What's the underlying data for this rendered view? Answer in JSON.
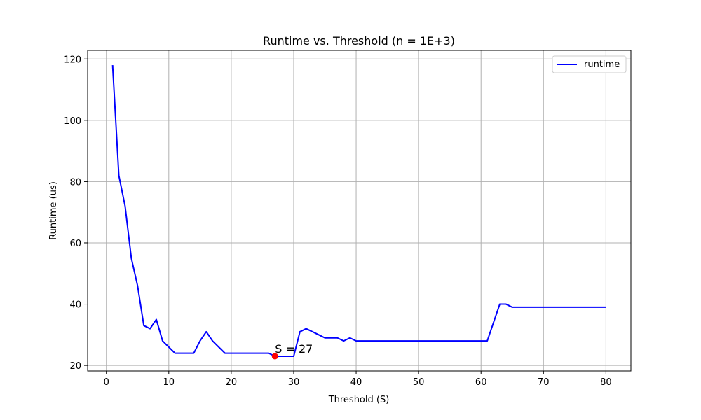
{
  "chart_data": {
    "type": "line",
    "title": "Runtime vs. Threshold (n = 1E+3)",
    "xlabel": "Threshold (S)",
    "ylabel": "Runtime (us)",
    "xlim": [
      -3,
      84
    ],
    "ylim": [
      18.2,
      122.8
    ],
    "xticks": [
      0,
      10,
      20,
      30,
      40,
      50,
      60,
      70,
      80
    ],
    "yticks": [
      20,
      40,
      60,
      80,
      100,
      120
    ],
    "grid": true,
    "legend": {
      "placement": "top-right",
      "entries": [
        "runtime"
      ]
    },
    "series": [
      {
        "name": "runtime",
        "color": "#0000ff",
        "x": [
          1,
          2,
          3,
          4,
          5,
          6,
          7,
          8,
          9,
          10,
          11,
          12,
          13,
          14,
          15,
          16,
          17,
          18,
          19,
          20,
          21,
          22,
          23,
          24,
          25,
          26,
          27,
          28,
          29,
          30,
          31,
          32,
          33,
          34,
          35,
          36,
          37,
          38,
          39,
          40,
          41,
          42,
          43,
          44,
          45,
          46,
          47,
          48,
          49,
          50,
          51,
          52,
          53,
          54,
          55,
          56,
          57,
          58,
          59,
          60,
          61,
          62,
          63,
          64,
          65,
          66,
          67,
          68,
          69,
          70,
          71,
          72,
          73,
          74,
          75,
          76,
          77,
          78,
          79,
          80
        ],
        "y": [
          118,
          82,
          72,
          55,
          46,
          33,
          32,
          35,
          28,
          26,
          24,
          24,
          24,
          24,
          28,
          31,
          28,
          26,
          24,
          24,
          24,
          24,
          24,
          24,
          24,
          24,
          23,
          23,
          23,
          23,
          31,
          32,
          31,
          30,
          29,
          29,
          29,
          28,
          29,
          28,
          28,
          28,
          28,
          28,
          28,
          28,
          28,
          28,
          28,
          28,
          28,
          28,
          28,
          28,
          28,
          28,
          28,
          28,
          28,
          28,
          28,
          34,
          40,
          40,
          39,
          39,
          39,
          39,
          39,
          39,
          39,
          39,
          39,
          39,
          39,
          39,
          39,
          39,
          39,
          39
        ]
      }
    ],
    "marker": {
      "x": 27,
      "y": 23,
      "color": "#ff0000"
    },
    "annotation": {
      "text": "S = 27",
      "x": 27,
      "y": 24.1
    }
  }
}
